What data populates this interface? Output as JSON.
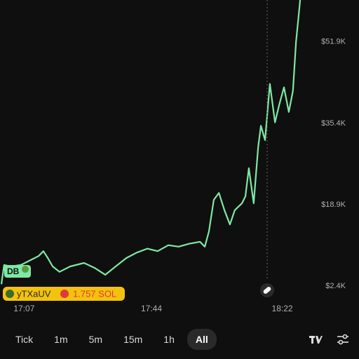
{
  "chart_data": {
    "type": "line",
    "color": "#7ee8a6",
    "x": [
      1020.4,
      1021.2,
      1023.1,
      1026.1,
      1029.2,
      1031.2,
      1032.6,
      1033.9,
      1035.3,
      1037.3,
      1040.4,
      1044.4,
      1047.5,
      1050.6,
      1053.6,
      1056.7,
      1059.7,
      1062.8,
      1065.8,
      1068.9,
      1071.9,
      1075.0,
      1078.1,
      1079.5,
      1080.7,
      1082.1,
      1083.6,
      1085.2,
      1086.8,
      1088.2,
      1090.3,
      1091.3,
      1092.3,
      1093.7,
      1095.0,
      1095.8,
      1097.0,
      1098.4,
      1099.9,
      1101.1,
      1102.5,
      1103.9,
      1105.1,
      1106.0,
      1107.2
    ],
    "values": [
      2800,
      6700,
      6400,
      6700,
      7800,
      8500,
      9500,
      8100,
      6400,
      5300,
      6400,
      7100,
      6100,
      4700,
      6400,
      8100,
      9200,
      10000,
      9500,
      10700,
      10400,
      11000,
      11400,
      10400,
      13500,
      19900,
      21300,
      17800,
      14900,
      17800,
      19200,
      20600,
      26300,
      19200,
      30600,
      34900,
      32000,
      43400,
      35600,
      39100,
      42700,
      37700,
      42000,
      51900,
      60400
    ],
    "xlim": [
      1020,
      1108
    ],
    "xticks": [
      {
        "value": 1027,
        "label": "17:07"
      },
      {
        "value": 1064,
        "label": "17:44"
      },
      {
        "value": 1102,
        "label": "18:22"
      }
    ],
    "ylim": [
      0,
      60400
    ],
    "yticks": [
      {
        "value": 2400,
        "label": "$2.4K"
      },
      {
        "value": 18900,
        "label": "$18.9K"
      },
      {
        "value": 35400,
        "label": "$35.4K"
      },
      {
        "value": 51900,
        "label": "$51.9K"
      }
    ],
    "grid": false
  },
  "markers": {
    "trader": "DB",
    "wallet": "yTXaUV",
    "amount": "1.757 SOL"
  },
  "controls": {
    "intervals": [
      "Tick",
      "1m",
      "5m",
      "15m",
      "1h",
      "All"
    ],
    "selected": "All"
  }
}
